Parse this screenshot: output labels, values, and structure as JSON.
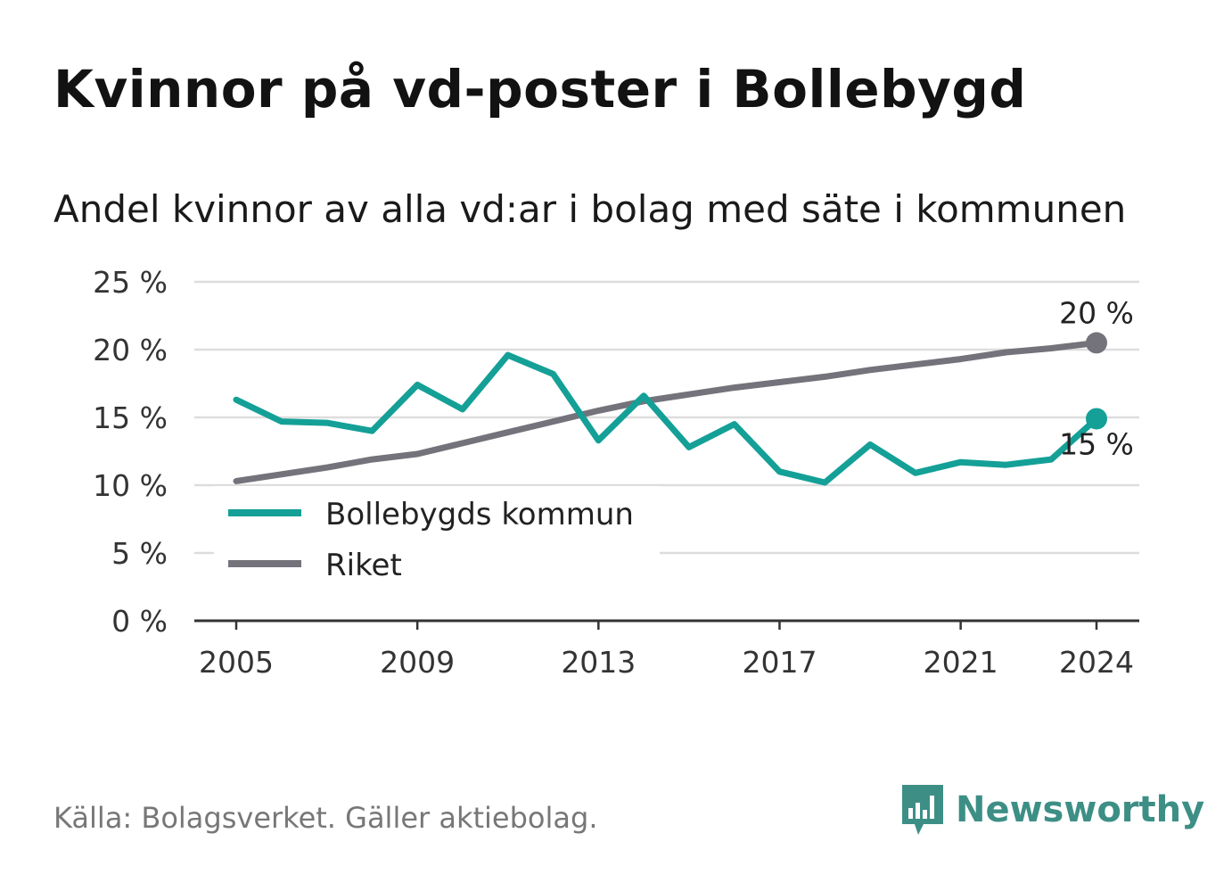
{
  "title": "Kvinnor på vd-poster i Bollebygd",
  "subtitle": "Andel kvinnor av alla vd:ar i bolag med säte i kommunen",
  "source": "Källa: Bolagsverket. Gäller aktiebolag.",
  "brand": {
    "name": "Newsworthy",
    "icon": "newsworthy-logo-icon",
    "color": "#3d8f86"
  },
  "colors": {
    "kommun": "#14a097",
    "riket": "#74737b",
    "grid": "#dddddd",
    "axis": "#333333"
  },
  "chart_data": {
    "type": "line",
    "title": "Kvinnor på vd-poster i Bollebygd",
    "subtitle": "Andel kvinnor av alla vd:ar i bolag med säte i kommunen",
    "x": [
      2005,
      2006,
      2007,
      2008,
      2009,
      2010,
      2011,
      2012,
      2013,
      2014,
      2015,
      2016,
      2017,
      2018,
      2019,
      2020,
      2021,
      2022,
      2023,
      2024
    ],
    "x_ticks": [
      "2005",
      "2009",
      "2013",
      "2017",
      "2021",
      "2024"
    ],
    "y_ticks": [
      "0 %",
      "5 %",
      "10 %",
      "15 %",
      "20 %",
      "25 %"
    ],
    "ylim": [
      0,
      25
    ],
    "grid": true,
    "legend_position": "bottom-left",
    "series": [
      {
        "name": "Bollebygds kommun",
        "color": "#14a097",
        "values": [
          16.3,
          14.7,
          14.6,
          14.0,
          17.4,
          15.6,
          19.6,
          18.2,
          13.3,
          16.6,
          12.8,
          14.5,
          11.0,
          10.2,
          13.0,
          10.9,
          11.7,
          11.5,
          11.9,
          14.9
        ],
        "end_label": "15 %"
      },
      {
        "name": "Riket",
        "color": "#74737b",
        "values": [
          10.3,
          10.8,
          11.3,
          11.9,
          12.3,
          13.1,
          13.9,
          14.7,
          15.5,
          16.2,
          16.7,
          17.2,
          17.6,
          18.0,
          18.5,
          18.9,
          19.3,
          19.8,
          20.1,
          20.5
        ],
        "end_label": "20 %"
      }
    ]
  }
}
